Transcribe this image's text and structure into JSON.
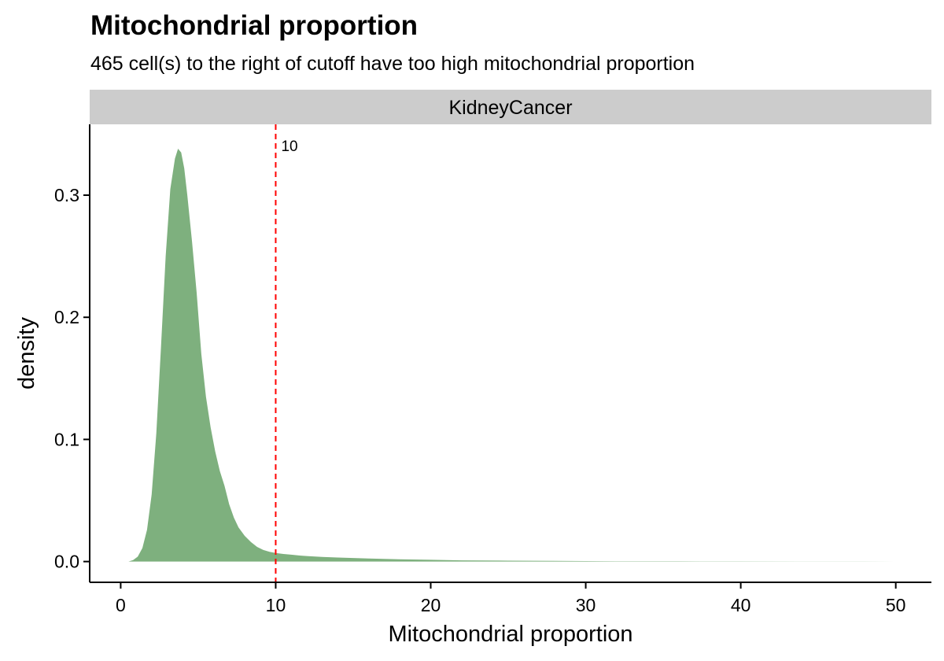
{
  "chart_data": {
    "type": "area",
    "title": "Mitochondrial proportion",
    "subtitle": "465 cell(s) to the right of cutoff have too high mitochondrial proportion",
    "facet": "KidneyCancer",
    "xlabel": "Mitochondrial proportion",
    "ylabel": "density",
    "xlim": [
      -2,
      52.3
    ],
    "ylim": [
      -0.017,
      0.358
    ],
    "x_ticks": [
      0,
      10,
      20,
      30,
      40,
      50
    ],
    "x_tick_labels": [
      "0",
      "10",
      "20",
      "30",
      "40",
      "50"
    ],
    "y_ticks": [
      0.0,
      0.1,
      0.2,
      0.3
    ],
    "y_tick_labels": [
      "0.0",
      "0.1",
      "0.2",
      "0.3"
    ],
    "cutoff": 10,
    "cutoff_label": "10",
    "fill_color": "#7eb07e",
    "cutoff_color": "#ff0000",
    "strip_color": "#cccccc",
    "grid": false,
    "legend": "none",
    "series": [
      {
        "x": [
          0.5,
          0.8,
          1.1,
          1.4,
          1.7,
          2.0,
          2.3,
          2.6,
          2.9,
          3.2,
          3.5,
          3.7,
          3.9,
          4.1,
          4.3,
          4.6,
          4.9,
          5.2,
          5.5,
          5.8,
          6.1,
          6.4,
          6.7,
          7.0,
          7.3,
          7.6,
          8.0,
          8.4,
          8.8,
          9.2,
          9.6,
          10.0,
          10.5,
          11.0,
          11.5,
          12.0,
          13.0,
          14.0,
          15.0,
          16.0,
          18.0,
          20.0,
          22.0,
          25.0,
          28.0,
          32.0,
          36.0,
          40.0,
          44.0,
          48.0,
          50.0
        ],
        "y": [
          0.0,
          0.0012,
          0.004,
          0.011,
          0.026,
          0.055,
          0.105,
          0.175,
          0.25,
          0.305,
          0.33,
          0.338,
          0.335,
          0.322,
          0.3,
          0.262,
          0.22,
          0.17,
          0.135,
          0.11,
          0.09,
          0.074,
          0.062,
          0.047,
          0.036,
          0.028,
          0.021,
          0.016,
          0.012,
          0.0095,
          0.008,
          0.007,
          0.0062,
          0.0056,
          0.005,
          0.0045,
          0.0038,
          0.0033,
          0.0029,
          0.0025,
          0.0019,
          0.0014,
          0.001,
          0.0007,
          0.0005,
          0.0003,
          0.0002,
          0.00015,
          0.0001,
          5e-05,
          0.0
        ]
      }
    ]
  }
}
